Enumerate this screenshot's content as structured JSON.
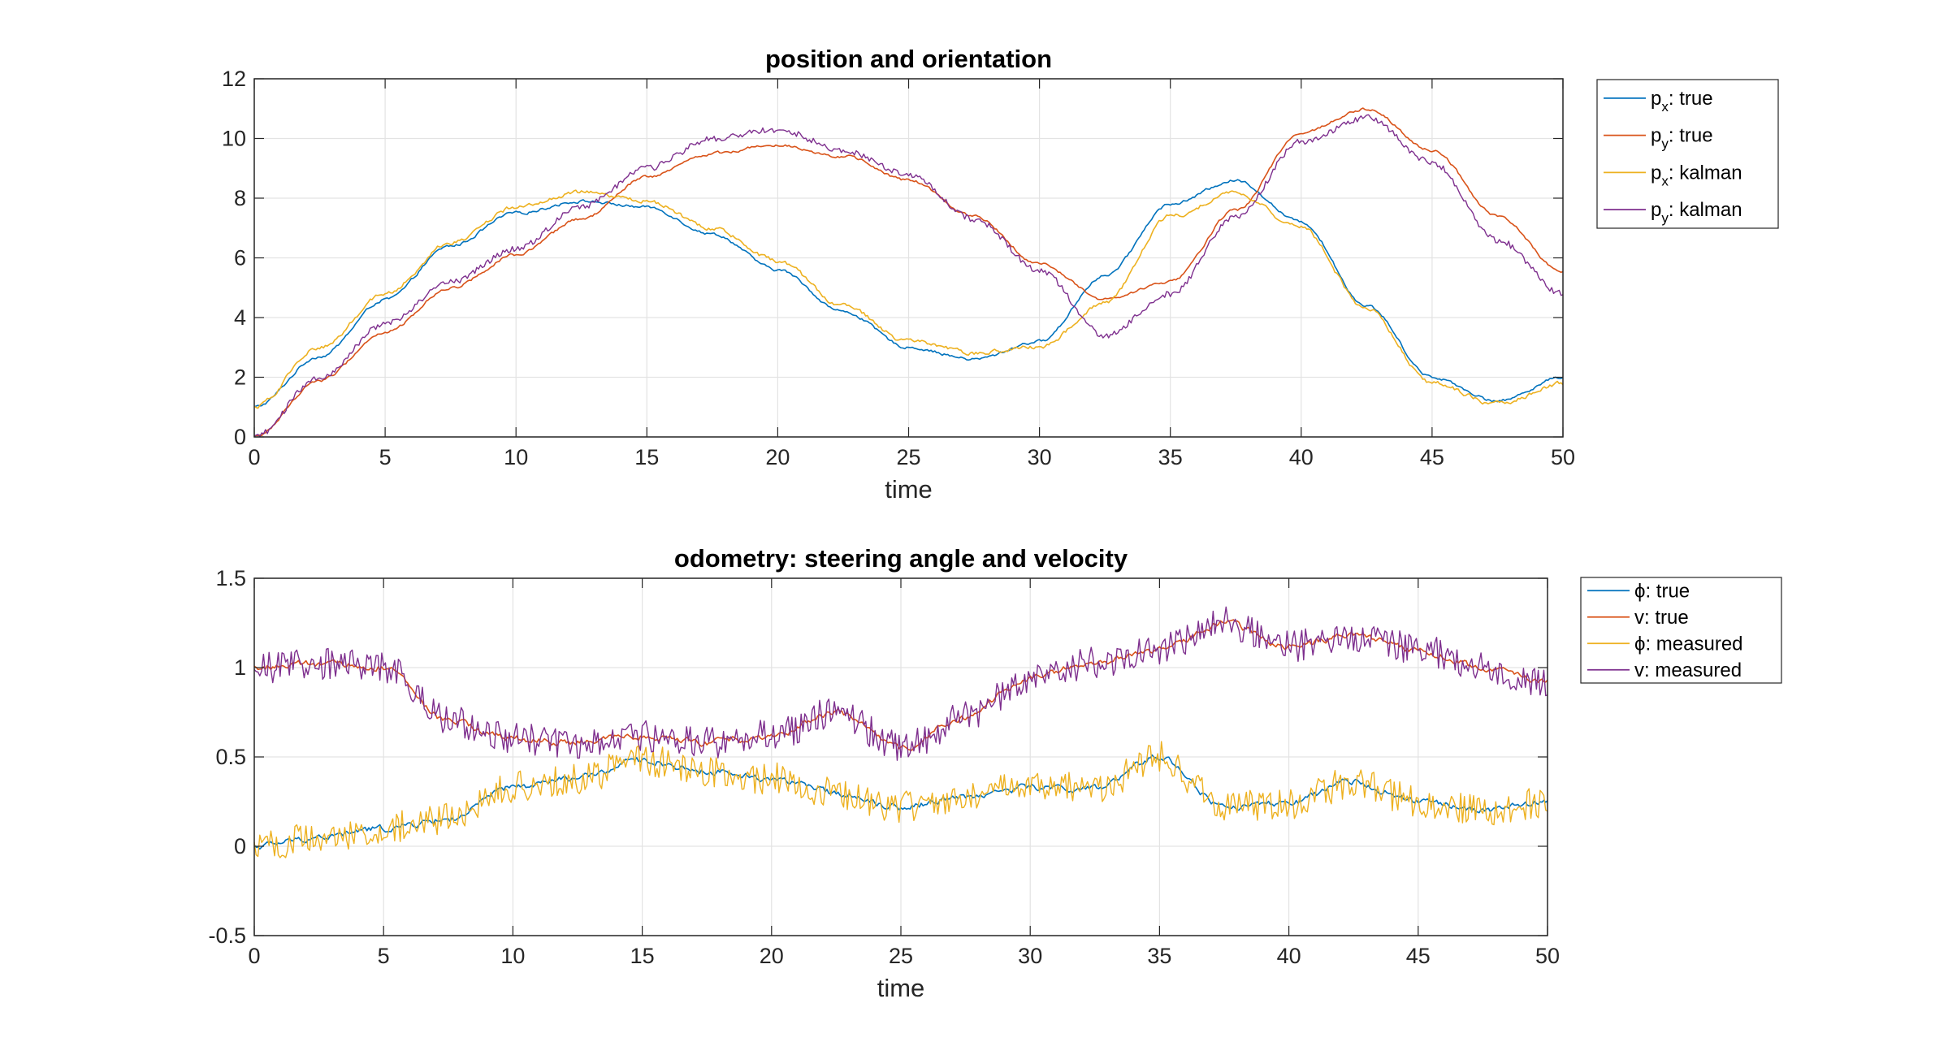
{
  "chart_data": [
    {
      "type": "line",
      "title": "position and orientation",
      "xlabel": "time",
      "ylabel": "",
      "xlim": [
        0,
        50
      ],
      "ylim": [
        0,
        12
      ],
      "xticks": [
        0,
        5,
        10,
        15,
        20,
        25,
        30,
        35,
        40,
        45,
        50
      ],
      "yticks": [
        0,
        2,
        4,
        6,
        8,
        10,
        12
      ],
      "grid": true,
      "legend_position": "outside-top-right",
      "series": [
        {
          "name": "p_x: true",
          "legend_base": "p",
          "legend_sub": "x",
          "legend_tail": ": true",
          "color": "#0072BD",
          "noise": 0.04,
          "x": [
            0,
            2.5,
            5,
            7.5,
            10,
            12.5,
            15,
            17.5,
            20,
            22.5,
            25,
            27.5,
            30,
            32.5,
            35,
            37.5,
            40,
            42.5,
            45,
            47.5,
            50
          ],
          "y": [
            1.0,
            2.7,
            4.6,
            6.4,
            7.5,
            7.9,
            7.7,
            6.8,
            5.6,
            4.2,
            3.0,
            2.6,
            3.2,
            5.4,
            7.8,
            8.6,
            7.2,
            4.4,
            2.0,
            1.2,
            2.0
          ]
        },
        {
          "name": "p_y: true",
          "legend_base": "p",
          "legend_sub": "y",
          "legend_tail": ": true",
          "color": "#D95319",
          "noise": 0.04,
          "x": [
            0,
            2.5,
            5,
            7.5,
            10,
            12.5,
            15,
            17.5,
            20,
            22.5,
            25,
            27.5,
            30,
            32.5,
            35,
            37.5,
            40,
            42.5,
            45,
            47.5,
            50
          ],
          "y": [
            0.0,
            1.9,
            3.5,
            5.0,
            6.1,
            7.3,
            8.7,
            9.5,
            9.8,
            9.4,
            8.6,
            7.4,
            5.8,
            4.6,
            5.2,
            7.6,
            10.2,
            11.0,
            9.6,
            7.4,
            5.5
          ]
        },
        {
          "name": "p_x: kalman",
          "legend_base": "p",
          "legend_sub": "x",
          "legend_tail": ": kalman",
          "color": "#EDB120",
          "noise": 0.06,
          "x": [
            0,
            2.5,
            5,
            7.5,
            10,
            12.5,
            15,
            17.5,
            20,
            22.5,
            25,
            27.5,
            30,
            32.5,
            35,
            37.5,
            40,
            42.5,
            45,
            47.5,
            50
          ],
          "y": [
            1.0,
            3.0,
            4.8,
            6.5,
            7.7,
            8.2,
            7.9,
            7.0,
            5.9,
            4.4,
            3.2,
            2.8,
            3.0,
            4.5,
            7.4,
            8.2,
            7.0,
            4.3,
            1.8,
            1.1,
            1.8
          ]
        },
        {
          "name": "p_y: kalman",
          "legend_base": "p",
          "legend_sub": "y",
          "legend_tail": ": kalman",
          "color": "#7E2F8E",
          "noise": 0.1,
          "x": [
            0,
            2.5,
            5,
            7.5,
            10,
            12.5,
            15,
            17.5,
            20,
            22.5,
            25,
            27.5,
            30,
            32.5,
            35,
            37.5,
            40,
            42.5,
            45,
            47.5,
            50
          ],
          "y": [
            0.0,
            2.0,
            3.8,
            5.2,
            6.3,
            7.7,
            9.0,
            10.0,
            10.3,
            9.6,
            8.8,
            7.3,
            5.6,
            3.4,
            4.8,
            7.4,
            9.9,
            10.7,
            9.2,
            6.6,
            4.8
          ]
        }
      ]
    },
    {
      "type": "line",
      "title": "odometry: steering angle and velocity",
      "xlabel": "time",
      "ylabel": "",
      "xlim": [
        0,
        50
      ],
      "ylim": [
        -0.5,
        1.5
      ],
      "xticks": [
        0,
        5,
        10,
        15,
        20,
        25,
        30,
        35,
        40,
        45,
        50
      ],
      "yticks": [
        -0.5,
        0,
        0.5,
        1,
        1.5
      ],
      "grid": true,
      "legend_position": "outside-top-right",
      "series": [
        {
          "name": "ϕ: true",
          "legend_base": "ϕ",
          "legend_sub": "",
          "legend_tail": ": true",
          "color": "#0072BD",
          "noise": 0.015,
          "x": [
            0,
            2.5,
            5,
            7.5,
            10,
            12.5,
            15,
            17.5,
            20,
            22.5,
            25,
            27.5,
            30,
            32.5,
            35,
            37.5,
            40,
            42.5,
            45,
            47.5,
            50
          ],
          "y": [
            0.0,
            0.05,
            0.1,
            0.15,
            0.33,
            0.38,
            0.48,
            0.42,
            0.38,
            0.3,
            0.22,
            0.28,
            0.33,
            0.32,
            0.5,
            0.22,
            0.24,
            0.36,
            0.25,
            0.2,
            0.25
          ]
        },
        {
          "name": "v: true",
          "legend_base": "v",
          "legend_sub": "",
          "legend_tail": ": true",
          "color": "#D95319",
          "noise": 0.015,
          "x": [
            0,
            2.5,
            5,
            7.5,
            10,
            12.5,
            15,
            17.5,
            20,
            22.5,
            25,
            27.5,
            30,
            32.5,
            35,
            37.5,
            40,
            42.5,
            45,
            47.5,
            50
          ],
          "y": [
            1.0,
            1.02,
            1.0,
            0.7,
            0.6,
            0.58,
            0.62,
            0.58,
            0.62,
            0.75,
            0.55,
            0.72,
            0.95,
            1.03,
            1.1,
            1.25,
            1.12,
            1.18,
            1.1,
            1.0,
            0.92
          ]
        },
        {
          "name": "ϕ: measured",
          "legend_base": "ϕ",
          "legend_sub": "",
          "legend_tail": ": measured",
          "color": "#EDB120",
          "noise": 0.09,
          "x": [
            0,
            2.5,
            5,
            7.5,
            10,
            12.5,
            15,
            17.5,
            20,
            22.5,
            25,
            27.5,
            30,
            32.5,
            35,
            37.5,
            40,
            42.5,
            45,
            47.5,
            50
          ],
          "y": [
            0.0,
            0.05,
            0.1,
            0.15,
            0.33,
            0.38,
            0.48,
            0.42,
            0.38,
            0.3,
            0.22,
            0.28,
            0.33,
            0.32,
            0.5,
            0.22,
            0.24,
            0.36,
            0.25,
            0.2,
            0.25
          ]
        },
        {
          "name": "v: measured",
          "legend_base": "v",
          "legend_sub": "",
          "legend_tail": ": measured",
          "color": "#7E2F8E",
          "noise": 0.09,
          "x": [
            0,
            2.5,
            5,
            7.5,
            10,
            12.5,
            15,
            17.5,
            20,
            22.5,
            25,
            27.5,
            30,
            32.5,
            35,
            37.5,
            40,
            42.5,
            45,
            47.5,
            50
          ],
          "y": [
            1.0,
            1.02,
            1.0,
            0.7,
            0.6,
            0.58,
            0.62,
            0.58,
            0.62,
            0.75,
            0.55,
            0.72,
            0.95,
            1.03,
            1.1,
            1.25,
            1.12,
            1.18,
            1.1,
            1.0,
            0.92
          ]
        }
      ]
    }
  ]
}
